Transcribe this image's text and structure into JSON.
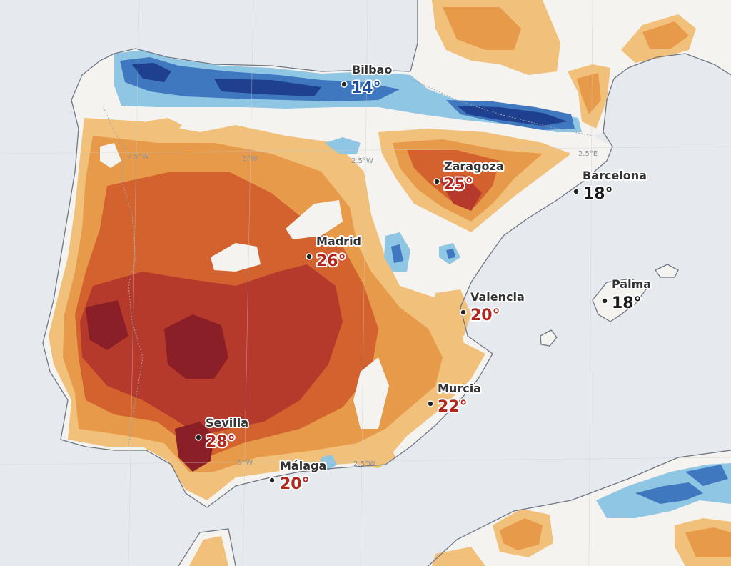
{
  "colors": {
    "sea": "#e6eaef",
    "land": "#f4f3ef",
    "cold_dark": "#1f3f8f",
    "cold_mid": "#3f78bf",
    "cold_light": "#8fc6e3",
    "warm_light": "#f1c07a",
    "warm_mid": "#e69a4a",
    "hot": "#d3622e",
    "hotter": "#b63a2b",
    "hottest": "#8a1f27",
    "temp_red": "#b3261e",
    "temp_blue": "#1f4e9a",
    "temp_black": "#1a1a1a"
  },
  "grid_labels": [
    "7.5°W",
    "5°W",
    "2.5°W",
    "2.5°E",
    "5°W",
    "2.5°W"
  ],
  "cities": [
    {
      "name": "Bilbao",
      "temp": "14°",
      "tone": "blue"
    },
    {
      "name": "Zaragoza",
      "temp": "25°",
      "tone": "red"
    },
    {
      "name": "Barcelona",
      "temp": "18°",
      "tone": "black"
    },
    {
      "name": "Madrid",
      "temp": "26°",
      "tone": "red"
    },
    {
      "name": "Palma",
      "temp": "18°",
      "tone": "black"
    },
    {
      "name": "Valencia",
      "temp": "20°",
      "tone": "red"
    },
    {
      "name": "Murcia",
      "temp": "22°",
      "tone": "red"
    },
    {
      "name": "Sevilla",
      "temp": "28°",
      "tone": "red"
    },
    {
      "name": "Málaga",
      "temp": "20°",
      "tone": "red"
    }
  ]
}
